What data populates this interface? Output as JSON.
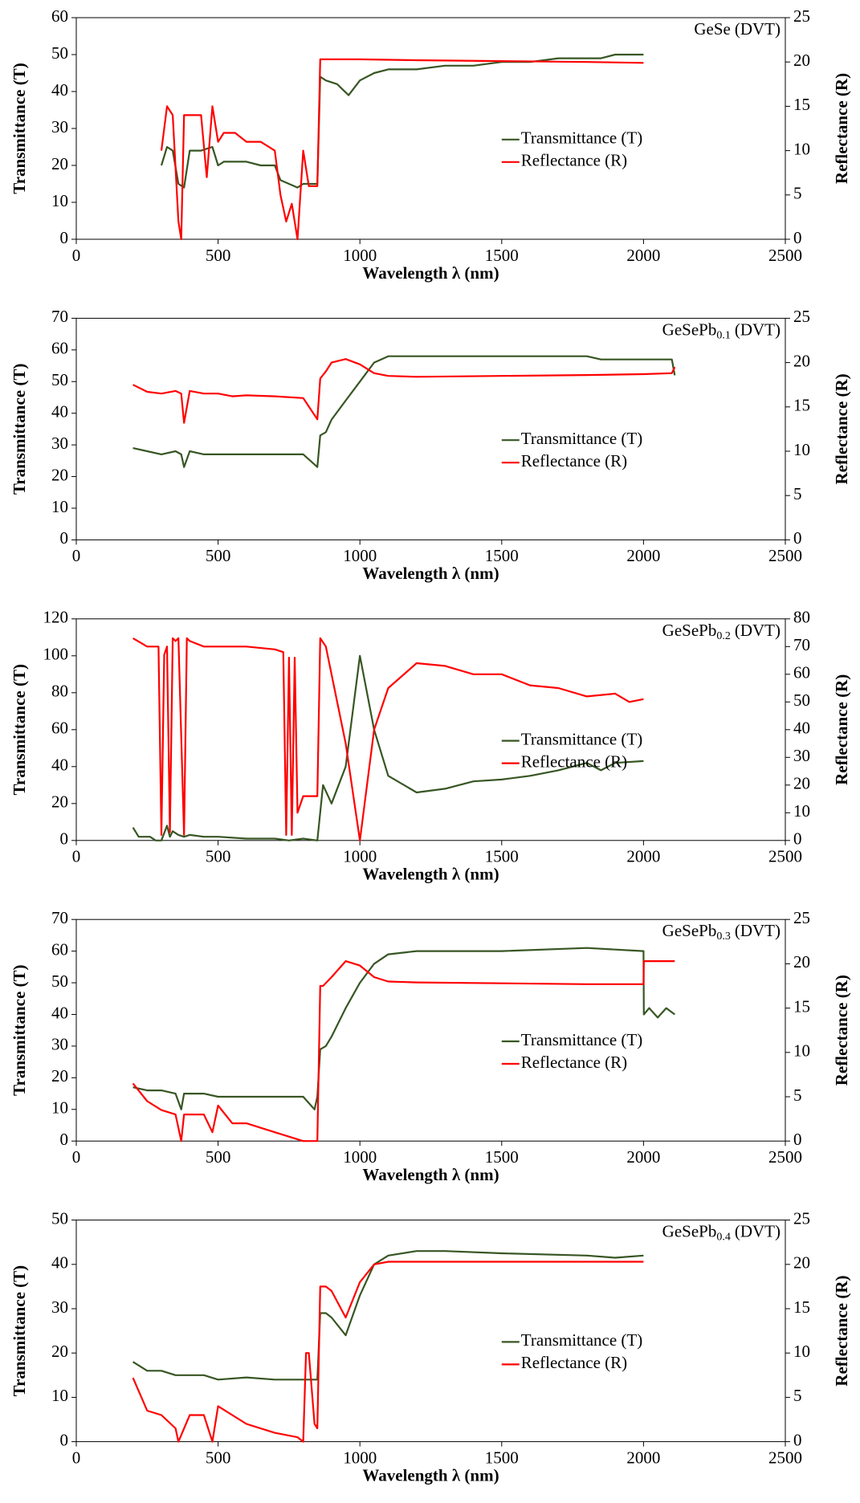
{
  "chart_data": [
    {
      "type": "line",
      "title": {
        "base": "GeSe",
        "suffix": "(DVT)"
      },
      "x_label": "Wavelength  λ (nm)",
      "y_label": "Transmittance (T)",
      "y2_label": "Reflectance (R)",
      "xlim": [
        0,
        2500
      ],
      "xticks": [
        0,
        500,
        1000,
        1500,
        2000,
        2500
      ],
      "ylim": [
        0,
        60
      ],
      "yticks": [
        0,
        10,
        20,
        30,
        40,
        50,
        60
      ],
      "y2lim": [
        0,
        25
      ],
      "y2ticks": [
        0,
        5,
        10,
        15,
        20,
        25
      ],
      "legend": "right",
      "series": [
        {
          "name": "Transmittance (T)",
          "color": "#375623",
          "x": [
            300,
            320,
            340,
            360,
            380,
            400,
            440,
            480,
            500,
            520,
            560,
            600,
            650,
            700,
            720,
            750,
            780,
            800,
            820,
            850,
            860,
            880,
            920,
            960,
            1000,
            1050,
            1100,
            1200,
            1300,
            1400,
            1500,
            1600,
            1700,
            1800,
            1850,
            1900,
            2000
          ],
          "values": [
            20,
            25,
            24,
            15,
            14,
            24,
            24,
            25,
            20,
            21,
            21,
            21,
            20,
            20,
            16,
            15,
            14,
            15,
            15,
            15,
            44,
            43,
            42,
            39,
            43,
            45,
            46,
            46,
            47,
            47,
            48,
            48,
            49,
            49,
            49,
            50,
            50
          ]
        },
        {
          "name": "Reflectance (R)",
          "color": "#ff0000",
          "axis": "y2",
          "x": [
            300,
            320,
            340,
            360,
            370,
            380,
            400,
            440,
            460,
            480,
            500,
            520,
            560,
            600,
            650,
            700,
            720,
            740,
            760,
            780,
            800,
            820,
            850,
            860,
            900,
            1000,
            1200,
            1500,
            1800,
            2000
          ],
          "values": [
            10,
            15,
            14,
            2,
            0,
            14,
            14,
            14,
            7,
            15,
            11,
            12,
            12,
            11,
            11,
            10,
            5,
            2,
            4,
            0,
            10,
            6,
            6,
            20.3,
            20.3,
            20.3,
            20.2,
            20.1,
            20,
            19.9
          ]
        }
      ]
    },
    {
      "type": "line",
      "title": {
        "base": "GeSePb",
        "sub": "0.1",
        "suffix": "(DVT)"
      },
      "x_label": "Wavelength  λ (nm)",
      "y_label": "Transmittance (T)",
      "y2_label": "Reflectance (R)",
      "xlim": [
        0,
        2500
      ],
      "xticks": [
        0,
        500,
        1000,
        1500,
        2000,
        2500
      ],
      "ylim": [
        0,
        70
      ],
      "yticks": [
        0,
        10,
        20,
        30,
        40,
        50,
        60,
        70
      ],
      "y2lim": [
        0,
        25
      ],
      "y2ticks": [
        0,
        5,
        10,
        15,
        20,
        25
      ],
      "legend": "right",
      "series": [
        {
          "name": "Transmittance (T)",
          "color": "#375623",
          "x": [
            200,
            250,
            300,
            350,
            370,
            380,
            400,
            450,
            500,
            550,
            600,
            700,
            800,
            850,
            860,
            880,
            900,
            950,
            1000,
            1050,
            1100,
            1200,
            1500,
            1800,
            1850,
            2000,
            2100,
            2110
          ],
          "values": [
            29,
            28,
            27,
            28,
            27,
            23,
            28,
            27,
            27,
            27,
            27,
            27,
            27,
            23,
            33,
            34,
            38,
            44,
            50,
            56,
            58,
            58,
            58,
            58,
            57,
            57,
            57,
            52
          ]
        },
        {
          "name": "Reflectance (R)",
          "color": "#ff0000",
          "axis": "y2",
          "x": [
            200,
            250,
            300,
            350,
            370,
            380,
            400,
            450,
            500,
            550,
            600,
            700,
            800,
            850,
            860,
            880,
            900,
            950,
            1000,
            1050,
            1100,
            1200,
            1500,
            1800,
            2000,
            2100,
            2110
          ],
          "values": [
            17.5,
            16.7,
            16.5,
            16.8,
            16.5,
            13.2,
            16.8,
            16.5,
            16.5,
            16.2,
            16.3,
            16.2,
            16,
            13.6,
            18.2,
            19,
            20,
            20.4,
            19.8,
            18.8,
            18.5,
            18.4,
            18.5,
            18.6,
            18.7,
            18.8,
            19.5
          ]
        }
      ]
    },
    {
      "type": "line",
      "title": {
        "base": "GeSePb",
        "sub": "0.2",
        "suffix": "(DVT)"
      },
      "x_label": "Wavelength  λ (nm)",
      "y_label": "Transmittance (T)",
      "y2_label": "Reflectance (R)",
      "xlim": [
        0,
        2500
      ],
      "xticks": [
        0,
        500,
        1000,
        1500,
        2000,
        2500
      ],
      "ylim": [
        0,
        120
      ],
      "yticks": [
        0,
        20,
        40,
        60,
        80,
        100,
        120
      ],
      "y2lim": [
        0,
        80
      ],
      "y2ticks": [
        0,
        10,
        20,
        30,
        40,
        50,
        60,
        70,
        80
      ],
      "legend": "right",
      "series": [
        {
          "name": "Transmittance (T)",
          "color": "#375623",
          "x": [
            200,
            220,
            260,
            280,
            300,
            320,
            330,
            340,
            360,
            380,
            400,
            450,
            500,
            600,
            700,
            750,
            800,
            850,
            870,
            900,
            950,
            1000,
            1050,
            1100,
            1200,
            1300,
            1400,
            1500,
            1600,
            1700,
            1800,
            1850,
            1900,
            2000
          ],
          "values": [
            7,
            2,
            2,
            0,
            0,
            8,
            2,
            5,
            3,
            2,
            3,
            2,
            2,
            1,
            1,
            0,
            1,
            0,
            30,
            20,
            40,
            100,
            60,
            35,
            26,
            28,
            32,
            33,
            35,
            38,
            42,
            38,
            42,
            43
          ]
        },
        {
          "name": "Reflectance (R)",
          "color": "#ff0000",
          "axis": "y2",
          "x": [
            200,
            250,
            290,
            300,
            310,
            320,
            330,
            340,
            350,
            360,
            380,
            390,
            400,
            450,
            500,
            600,
            700,
            730,
            740,
            750,
            760,
            770,
            780,
            800,
            850,
            860,
            880,
            950,
            1000,
            1050,
            1100,
            1200,
            1300,
            1400,
            1500,
            1600,
            1700,
            1800,
            1900,
            1950,
            2000
          ],
          "values": [
            73,
            70,
            70,
            2,
            67,
            70,
            3,
            73,
            72,
            73,
            2,
            73,
            72,
            70,
            70,
            70,
            69,
            68,
            2,
            66,
            2,
            66,
            10,
            16,
            16,
            73,
            70,
            35,
            0,
            40,
            55,
            64,
            63,
            60,
            60,
            56,
            55,
            52,
            53,
            50,
            51
          ]
        }
      ]
    },
    {
      "type": "line",
      "title": {
        "base": "GeSePb",
        "sub": "0.3",
        "suffix": "(DVT)"
      },
      "x_label": "Wavelength λ (nm)",
      "y_label": "Transmittance (T)",
      "y2_label": "Reflectance (R)",
      "xlim": [
        0,
        2500
      ],
      "xticks": [
        0,
        500,
        1000,
        1500,
        2000,
        2500
      ],
      "ylim": [
        0,
        70
      ],
      "yticks": [
        0,
        10,
        20,
        30,
        40,
        50,
        60,
        70
      ],
      "y2lim": [
        0,
        25
      ],
      "y2ticks": [
        0,
        5,
        10,
        15,
        20,
        25
      ],
      "legend": "right",
      "series": [
        {
          "name": "Transmittance (T)",
          "color": "#375623",
          "x": [
            200,
            250,
            300,
            350,
            370,
            380,
            400,
            450,
            500,
            600,
            700,
            800,
            840,
            850,
            860,
            880,
            900,
            950,
            1000,
            1050,
            1100,
            1200,
            1500,
            1800,
            2000,
            2001,
            2020,
            2050,
            2080,
            2110
          ],
          "values": [
            17,
            16,
            16,
            15,
            10,
            15,
            15,
            15,
            14,
            14,
            14,
            14,
            10,
            14,
            29,
            30,
            33,
            42,
            50,
            56,
            59,
            60,
            60,
            61,
            60,
            40,
            42,
            39,
            42,
            40
          ]
        },
        {
          "name": "Reflectance (R)",
          "color": "#ff0000",
          "axis": "y2",
          "x": [
            200,
            250,
            300,
            350,
            370,
            380,
            400,
            450,
            480,
            500,
            550,
            600,
            700,
            800,
            850,
            860,
            870,
            900,
            950,
            1000,
            1050,
            1100,
            1200,
            1500,
            1800,
            2000,
            2001,
            2110
          ],
          "values": [
            6.5,
            4.5,
            3.5,
            3,
            0,
            3,
            3,
            3,
            1,
            4,
            2,
            2,
            1,
            0,
            0,
            17.5,
            17.5,
            18.5,
            20.3,
            19.8,
            18.5,
            18,
            17.9,
            17.8,
            17.7,
            17.7,
            20.3,
            20.3
          ]
        }
      ]
    },
    {
      "type": "line",
      "title": {
        "base": "GeSePb",
        "sub": "0.4",
        "suffix": "(DVT)"
      },
      "x_label": "Wavelength λ (nm)",
      "y_label": "Transmittance (T)",
      "y2_label": "Reflectance (R)",
      "xlim": [
        0,
        2500
      ],
      "xticks": [
        0,
        500,
        1000,
        1500,
        2000,
        2500
      ],
      "ylim": [
        0,
        50
      ],
      "yticks": [
        0,
        10,
        20,
        30,
        40,
        50
      ],
      "y2lim": [
        0,
        25
      ],
      "y2ticks": [
        0,
        5,
        10,
        15,
        20,
        25
      ],
      "legend": "right",
      "series": [
        {
          "name": "Transmittance (T)",
          "color": "#375623",
          "x": [
            200,
            250,
            300,
            350,
            400,
            450,
            500,
            600,
            700,
            800,
            850,
            860,
            880,
            900,
            950,
            1000,
            1050,
            1100,
            1200,
            1300,
            1500,
            1800,
            1900,
            2000
          ],
          "values": [
            18,
            16,
            16,
            15,
            15,
            15,
            14,
            14.5,
            14,
            14,
            14,
            29,
            29,
            28,
            24,
            33,
            40,
            42,
            43,
            43,
            42.5,
            42,
            41.5,
            42
          ]
        },
        {
          "name": "Reflectance (R)",
          "color": "#ff0000",
          "axis": "y2",
          "x": [
            200,
            250,
            300,
            350,
            360,
            400,
            450,
            480,
            500,
            600,
            700,
            780,
            800,
            810,
            820,
            840,
            850,
            860,
            880,
            900,
            950,
            1000,
            1050,
            1100,
            1200,
            1500,
            2000
          ],
          "values": [
            7.2,
            3.5,
            3,
            1.5,
            0,
            3,
            3,
            0,
            4,
            2,
            1,
            0.5,
            0,
            10,
            10,
            2,
            1.5,
            17.5,
            17.5,
            17,
            14,
            18,
            20,
            20.3,
            20.3,
            20.3,
            20.3
          ]
        }
      ]
    }
  ]
}
